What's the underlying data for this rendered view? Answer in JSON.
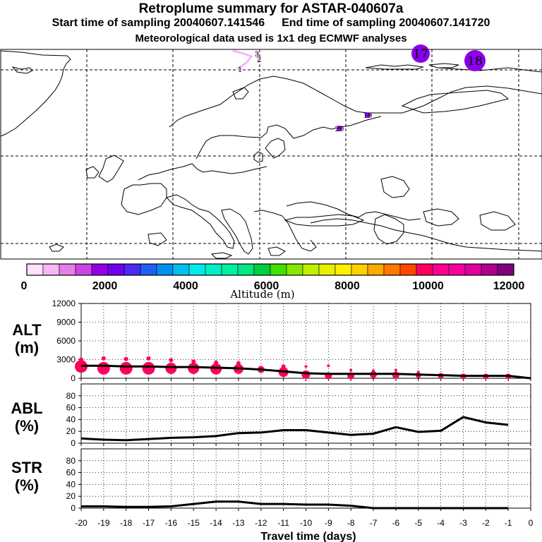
{
  "header": {
    "title": "Retroplume summary for ASTAR-040607a",
    "start_label": "Start time of sampling 20040607.141546",
    "end_label": "End time of sampling 20040607.141720",
    "meteo_label": "Meteorological data used is 1x1 deg ECMWF analyses"
  },
  "map": {
    "day_markers": [
      {
        "label": "17",
        "color": "#8B00E8",
        "size": "large"
      },
      {
        "label": "18",
        "color": "#8B00E8",
        "size": "large"
      },
      {
        "label": "19",
        "color": "#8B00E8",
        "size": "small"
      },
      {
        "label": "20",
        "color": "#8B00E8",
        "size": "small"
      },
      {
        "label": "1",
        "color": "#F0C8F0",
        "size": "small"
      },
      {
        "label": "2",
        "color": "#F0C8F0",
        "size": "small"
      },
      {
        "label": "3",
        "color": "#F0C8F0",
        "size": "small"
      }
    ]
  },
  "colorbar": {
    "colors": [
      "#FFE0FF",
      "#F5B8F5",
      "#E47EE8",
      "#CC44E6",
      "#9400E6",
      "#7000F0",
      "#4A2CF0",
      "#1E60F0",
      "#0090F0",
      "#00C0F0",
      "#00EAF0",
      "#00F0C8",
      "#00F0A0",
      "#00E880",
      "#00D040",
      "#40E000",
      "#88E800",
      "#C0F000",
      "#E8F000",
      "#FFF000",
      "#FFD000",
      "#FFA800",
      "#FF7800",
      "#FF4800",
      "#FF0060",
      "#FF0090",
      "#F800A0",
      "#E000A0",
      "#B00090",
      "#800080"
    ],
    "ticks": [
      "0",
      "2000",
      "4000",
      "6000",
      "8000",
      "10000",
      "12000"
    ],
    "label": "Altitude (m)"
  },
  "chart_data": {
    "type": "line",
    "xlabel": "Travel time (days)",
    "x_ticks": [
      "-20",
      "-19",
      "-18",
      "-17",
      "-16",
      "-15",
      "-14",
      "-13",
      "-12",
      "-11",
      "-10",
      "-9",
      "-8",
      "-7",
      "-6",
      "-5",
      "-4",
      "-3",
      "-2",
      "-1",
      "0"
    ],
    "xlim": [
      -20,
      0
    ],
    "panels": [
      {
        "name": "ALT",
        "label_line1": "ALT",
        "label_line2": "(m)",
        "ylim": [
          0,
          12000
        ],
        "y_ticks": [
          "0",
          "3000",
          "6000",
          "9000",
          "12000"
        ],
        "x": [
          -20,
          -19,
          -18,
          -17,
          -16,
          -15,
          -14,
          -13,
          -12,
          -11,
          -10,
          -9,
          -8,
          -7,
          -6,
          -5,
          -4,
          -3,
          -2,
          -1,
          0
        ],
        "values": [
          2000,
          2000,
          1900,
          1900,
          1800,
          1800,
          1700,
          1600,
          1400,
          1100,
          800,
          700,
          700,
          700,
          700,
          600,
          500,
          400,
          400,
          400,
          0
        ],
        "marker_color": "#FF0060",
        "plume_points": [
          {
            "x": -20,
            "alt": 1900,
            "size": 9
          },
          {
            "x": -20,
            "alt": 3000,
            "size": 3
          },
          {
            "x": -19,
            "alt": 1600,
            "size": 9
          },
          {
            "x": -19,
            "alt": 3200,
            "size": 3
          },
          {
            "x": -18,
            "alt": 1600,
            "size": 9
          },
          {
            "x": -18,
            "alt": 3100,
            "size": 3
          },
          {
            "x": -17,
            "alt": 1600,
            "size": 9
          },
          {
            "x": -17,
            "alt": 3200,
            "size": 3
          },
          {
            "x": -16,
            "alt": 1600,
            "size": 8
          },
          {
            "x": -16,
            "alt": 2900,
            "size": 3
          },
          {
            "x": -15,
            "alt": 1600,
            "size": 8
          },
          {
            "x": -15,
            "alt": 2700,
            "size": 3
          },
          {
            "x": -14,
            "alt": 1500,
            "size": 8
          },
          {
            "x": -14,
            "alt": 2500,
            "size": 3
          },
          {
            "x": -13,
            "alt": 1500,
            "size": 7
          },
          {
            "x": -13,
            "alt": 2400,
            "size": 3
          },
          {
            "x": -12,
            "alt": 1400,
            "size": 5
          },
          {
            "x": -11,
            "alt": 1000,
            "size": 7
          },
          {
            "x": -11,
            "alt": 1900,
            "size": 3
          },
          {
            "x": -10,
            "alt": 600,
            "size": 6
          },
          {
            "x": -10,
            "alt": 1900,
            "size": 2
          },
          {
            "x": -9,
            "alt": 400,
            "size": 5
          },
          {
            "x": -9,
            "alt": 2000,
            "size": 2
          },
          {
            "x": -8,
            "alt": 400,
            "size": 5
          },
          {
            "x": -8,
            "alt": 1300,
            "size": 2
          },
          {
            "x": -7,
            "alt": 600,
            "size": 5
          },
          {
            "x": -7,
            "alt": 1200,
            "size": 2
          },
          {
            "x": -6,
            "alt": 500,
            "size": 5
          },
          {
            "x": -6,
            "alt": 1300,
            "size": 2
          },
          {
            "x": -5,
            "alt": 500,
            "size": 4
          },
          {
            "x": -5,
            "alt": 1000,
            "size": 2
          },
          {
            "x": -4,
            "alt": 400,
            "size": 4
          },
          {
            "x": -3,
            "alt": 300,
            "size": 4
          },
          {
            "x": -2,
            "alt": 300,
            "size": 4
          },
          {
            "x": -1,
            "alt": 300,
            "size": 4
          }
        ]
      },
      {
        "name": "ABL",
        "label_line1": "ABL",
        "label_line2": "(%)",
        "ylim": [
          0,
          100
        ],
        "y_ticks": [
          "0",
          "20",
          "40",
          "60",
          "80"
        ],
        "x": [
          -20,
          -19,
          -18,
          -17,
          -16,
          -15,
          -14,
          -13,
          -12,
          -11,
          -10,
          -9,
          -8,
          -7,
          -6,
          -5,
          -4,
          -3,
          -2,
          -1
        ],
        "values": [
          8,
          6,
          5,
          7,
          9,
          10,
          12,
          17,
          18,
          22,
          22,
          18,
          14,
          16,
          27,
          19,
          21,
          44,
          35,
          31
        ]
      },
      {
        "name": "STR",
        "label_line1": "STR",
        "label_line2": "(%)",
        "ylim": [
          0,
          100
        ],
        "y_ticks": [
          "0",
          "20",
          "40",
          "60",
          "80"
        ],
        "x": [
          -20,
          -19,
          -18,
          -17,
          -16,
          -15,
          -14,
          -13,
          -12,
          -11,
          -10,
          -9,
          -8,
          -7,
          -6,
          -5,
          -4,
          -3,
          -2,
          -1
        ],
        "values": [
          3,
          3,
          2,
          2,
          3,
          7,
          11,
          11,
          7,
          7,
          6,
          6,
          4,
          0,
          0,
          0,
          0,
          0,
          0,
          0
        ]
      }
    ]
  }
}
